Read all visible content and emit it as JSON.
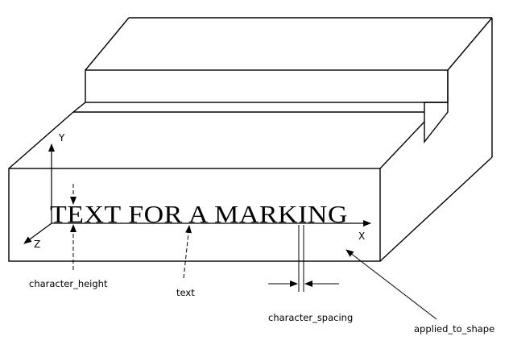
{
  "marking_text": "TEXT FOR A MARKING",
  "axes": {
    "x": "X",
    "y": "Y",
    "z": "Z"
  },
  "labels": {
    "character_height": "character_height",
    "text": "text",
    "character_spacing": "character_spacing",
    "applied_to_shape": "applied_to_shape"
  }
}
